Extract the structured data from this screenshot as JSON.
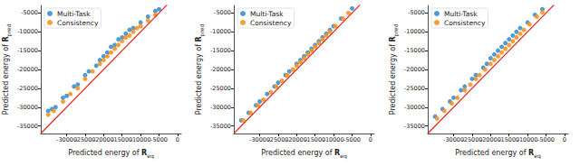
{
  "chart_data": [
    {
      "type": "scatter",
      "xlabel": "Predicted energy of R",
      "xlabel_sub": "eq",
      "ylabel": "Predicted energy of R",
      "ylabel_sub": "pred",
      "xlim": [
        -37000,
        1000
      ],
      "xticks": [
        -35000,
        -30000,
        -25000,
        -20000,
        -15000,
        -10000,
        -5000,
        0
      ],
      "ylim": [
        -37000,
        -3000
      ],
      "yticks": [
        -35000,
        -30000,
        -25000,
        -20000,
        -15000,
        -10000,
        -5000
      ],
      "legend": "upper left",
      "reference_line": {
        "x": [
          -37000,
          1000
        ],
        "y": [
          -37000,
          1000
        ],
        "color": "#e8271c"
      },
      "series": [
        {
          "name": "Multi-Task",
          "color": "#3d8fd1",
          "x": [
            -35000,
            -34000,
            -33000,
            -31000,
            -30000,
            -28000,
            -27000,
            -25000,
            -24000,
            -22000,
            -21000,
            -20000,
            -19000,
            -18000,
            -17000,
            -16000,
            -15000,
            -14000,
            -13000,
            -12000,
            -10000,
            -8000,
            -6000,
            -5000
          ],
          "y": [
            -31000,
            -30500,
            -30000,
            -27500,
            -27000,
            -24500,
            -24000,
            -21500,
            -20500,
            -19000,
            -17500,
            -16500,
            -15500,
            -14000,
            -13500,
            -12000,
            -11500,
            -10500,
            -9500,
            -9000,
            -7500,
            -6000,
            -4500,
            -4000
          ]
        },
        {
          "name": "Consistency",
          "color": "#f7931e",
          "x": [
            -35000,
            -33500,
            -31000,
            -29000,
            -27000,
            -25000,
            -23000,
            -21000,
            -20000,
            -19000,
            -18000,
            -17000,
            -16000,
            -15000,
            -14000,
            -13000,
            -12000,
            -11000,
            -10000,
            -8000,
            -6000
          ],
          "y": [
            -32000,
            -31000,
            -28500,
            -26500,
            -25000,
            -22500,
            -20500,
            -18500,
            -17500,
            -16500,
            -15500,
            -14500,
            -13500,
            -12500,
            -11500,
            -11000,
            -10000,
            -9000,
            -8500,
            -7000,
            -5500
          ]
        }
      ]
    },
    {
      "type": "scatter",
      "xlabel": "Predicted energy of R",
      "xlabel_sub": "eq",
      "ylabel": "Predicted energy of R",
      "ylabel_sub": "pred",
      "xlim": [
        -37000,
        1000
      ],
      "xticks": [
        -35000,
        -30000,
        -25000,
        -20000,
        -15000,
        -10000,
        -5000,
        0
      ],
      "ylim": [
        -37000,
        -3000
      ],
      "yticks": [
        -35000,
        -30000,
        -25000,
        -20000,
        -15000,
        -10000,
        -5000
      ],
      "legend": "upper left",
      "reference_line": {
        "x": [
          -37000,
          1000
        ],
        "y": [
          -37000,
          1000
        ],
        "color": "#e8271c"
      },
      "series": [
        {
          "name": "Multi-Task",
          "color": "#3d8fd1",
          "x": [
            -35000,
            -33000,
            -31000,
            -30000,
            -28000,
            -26000,
            -25000,
            -23000,
            -22000,
            -20000,
            -19000,
            -18000,
            -17000,
            -16000,
            -15000,
            -14000,
            -13000,
            -12000,
            -11000,
            -10000,
            -8000,
            -5000
          ],
          "y": [
            -33500,
            -31500,
            -29500,
            -28500,
            -26500,
            -24500,
            -23500,
            -21500,
            -20500,
            -18500,
            -17500,
            -16500,
            -15500,
            -14500,
            -13500,
            -12500,
            -11500,
            -10500,
            -9500,
            -8500,
            -6500,
            -3800
          ]
        },
        {
          "name": "Consistency",
          "color": "#f7931e",
          "x": [
            -34500,
            -32500,
            -30500,
            -29000,
            -27000,
            -25500,
            -24000,
            -22500,
            -21000,
            -20000,
            -19000,
            -18000,
            -17000,
            -16000,
            -15000,
            -14000,
            -13000,
            -12000,
            -11000,
            -9500,
            -7500,
            -6000
          ],
          "y": [
            -33500,
            -31500,
            -29500,
            -28000,
            -26000,
            -24500,
            -23000,
            -21500,
            -20000,
            -19000,
            -18000,
            -17000,
            -16000,
            -15000,
            -14000,
            -13000,
            -12000,
            -11000,
            -10000,
            -8500,
            -6500,
            -5000
          ]
        }
      ]
    },
    {
      "type": "scatter",
      "xlabel": "Predicted energy of R",
      "xlabel_sub": "eq",
      "ylabel": "Predicted energy of R",
      "ylabel_sub": "pred",
      "xlim": [
        -37000,
        1000
      ],
      "xticks": [
        -35000,
        -30000,
        -25000,
        -20000,
        -15000,
        -10000,
        -5000,
        0
      ],
      "ylim": [
        -37000,
        -3000
      ],
      "yticks": [
        -35000,
        -30000,
        -25000,
        -20000,
        -15000,
        -10000,
        -5000
      ],
      "legend": "upper left",
      "reference_line": {
        "x": [
          -37000,
          1000
        ],
        "y": [
          -37000,
          1000
        ],
        "color": "#e8271c"
      },
      "series": [
        {
          "name": "Multi-Task",
          "color": "#3d8fd1",
          "x": [
            -35000,
            -33000,
            -31000,
            -30000,
            -28000,
            -27000,
            -25000,
            -24000,
            -22000,
            -21000,
            -20000,
            -19000,
            -18000,
            -17000,
            -16000,
            -15000,
            -14000,
            -13000,
            -12000,
            -10000,
            -8000,
            -6000
          ],
          "y": [
            -32500,
            -30500,
            -28500,
            -27500,
            -25500,
            -24500,
            -22500,
            -21500,
            -19500,
            -18500,
            -17000,
            -16000,
            -15000,
            -14000,
            -13000,
            -12000,
            -11000,
            -10000,
            -9000,
            -7500,
            -5500,
            -4000
          ]
        },
        {
          "name": "Consistency",
          "color": "#f7931e",
          "x": [
            -34500,
            -32500,
            -30500,
            -29000,
            -27000,
            -25500,
            -24000,
            -23000,
            -21500,
            -20000,
            -19000,
            -18000,
            -17000,
            -16000,
            -15000,
            -14000,
            -13000,
            -12000,
            -11000,
            -9500,
            -7500,
            -6000
          ],
          "y": [
            -33000,
            -31000,
            -29000,
            -27500,
            -25500,
            -24000,
            -22500,
            -21500,
            -20000,
            -18500,
            -17500,
            -16500,
            -15500,
            -14500,
            -13500,
            -12500,
            -11500,
            -10500,
            -9500,
            -8000,
            -6000,
            -4800
          ]
        }
      ]
    }
  ]
}
